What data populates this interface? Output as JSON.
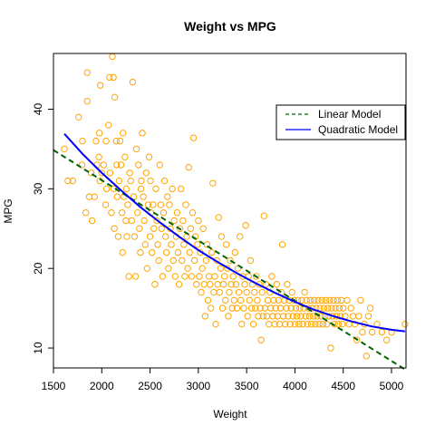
{
  "chart_data": {
    "type": "scatter",
    "title": "Weight vs MPG",
    "xlabel": "Weight",
    "ylabel": "MPG",
    "xlim": [
      1500,
      5150
    ],
    "ylim": [
      7.5,
      47
    ],
    "xticks": [
      1500,
      2000,
      2500,
      3000,
      3500,
      4000,
      4500,
      5000
    ],
    "yticks": [
      10,
      20,
      30,
      40
    ],
    "grid": false,
    "legend_position": "top-right",
    "colors": {
      "points": "#FFA500",
      "linear": "#006400",
      "quadratic": "#0000FF"
    },
    "legend": [
      {
        "label": "Linear Model",
        "color": "#006400",
        "style": "dashed"
      },
      {
        "label": "Quadratic Model",
        "color": "#0000FF",
        "style": "solid"
      }
    ],
    "linear_model": {
      "x": [
        1500,
        5150
      ],
      "y": [
        34.86,
        7.24
      ]
    },
    "quadratic_model": {
      "x": [
        1613,
        1800,
        2000,
        2200,
        2400,
        2600,
        2800,
        3000,
        3200,
        3400,
        3600,
        3800,
        4000,
        4200,
        4400,
        4600,
        4800,
        5000,
        5140
      ],
      "y": [
        36.9,
        34.4,
        32.0,
        29.8,
        27.7,
        25.8,
        24.0,
        22.3,
        20.8,
        19.4,
        18.1,
        16.9,
        15.8,
        14.8,
        14.0,
        13.3,
        12.7,
        12.3,
        12.1
      ]
    },
    "points": [
      [
        1613,
        35
      ],
      [
        1649,
        31
      ],
      [
        1700,
        31
      ],
      [
        1760,
        39
      ],
      [
        1795,
        33
      ],
      [
        1800,
        36
      ],
      [
        1835,
        27
      ],
      [
        1850,
        44.6
      ],
      [
        1850,
        41
      ],
      [
        1870,
        29
      ],
      [
        1890,
        32
      ],
      [
        1900,
        26
      ],
      [
        1925,
        29
      ],
      [
        1940,
        36
      ],
      [
        1950,
        33
      ],
      [
        1970,
        34
      ],
      [
        1975,
        37
      ],
      [
        1980,
        31
      ],
      [
        1985,
        43
      ],
      [
        2000,
        32
      ],
      [
        2020,
        33
      ],
      [
        2040,
        28
      ],
      [
        2045,
        36
      ],
      [
        2050,
        30
      ],
      [
        2070,
        38
      ],
      [
        2080,
        44
      ],
      [
        2085,
        32
      ],
      [
        2100,
        27
      ],
      [
        2110,
        46.6
      ],
      [
        2120,
        44
      ],
      [
        2125,
        30
      ],
      [
        2130,
        25
      ],
      [
        2135,
        41.5
      ],
      [
        2150,
        36
      ],
      [
        2155,
        33
      ],
      [
        2160,
        29
      ],
      [
        2170,
        24
      ],
      [
        2180,
        31
      ],
      [
        2190,
        36
      ],
      [
        2200,
        33
      ],
      [
        2210,
        27
      ],
      [
        2215,
        22
      ],
      [
        2220,
        37
      ],
      [
        2230,
        29
      ],
      [
        2240,
        34
      ],
      [
        2250,
        26
      ],
      [
        2255,
        30
      ],
      [
        2260,
        24
      ],
      [
        2270,
        28
      ],
      [
        2280,
        19
      ],
      [
        2290,
        32
      ],
      [
        2300,
        31
      ],
      [
        2310,
        26
      ],
      [
        2320,
        43.4
      ],
      [
        2330,
        29
      ],
      [
        2340,
        24
      ],
      [
        2350,
        19
      ],
      [
        2360,
        35
      ],
      [
        2370,
        27
      ],
      [
        2380,
        33
      ],
      [
        2390,
        25
      ],
      [
        2400,
        22
      ],
      [
        2405,
        30
      ],
      [
        2410,
        31
      ],
      [
        2420,
        37
      ],
      [
        2430,
        29
      ],
      [
        2440,
        26
      ],
      [
        2450,
        23
      ],
      [
        2460,
        32
      ],
      [
        2470,
        20
      ],
      [
        2480,
        28
      ],
      [
        2490,
        34
      ],
      [
        2500,
        24
      ],
      [
        2505,
        31
      ],
      [
        2510,
        27
      ],
      [
        2520,
        22
      ],
      [
        2530,
        28
      ],
      [
        2540,
        25
      ],
      [
        2550,
        18
      ],
      [
        2560,
        30
      ],
      [
        2570,
        26
      ],
      [
        2580,
        23
      ],
      [
        2590,
        21
      ],
      [
        2600,
        33
      ],
      [
        2610,
        28
      ],
      [
        2620,
        25
      ],
      [
        2630,
        19
      ],
      [
        2640,
        27
      ],
      [
        2650,
        31
      ],
      [
        2660,
        24
      ],
      [
        2670,
        22
      ],
      [
        2680,
        29
      ],
      [
        2690,
        20
      ],
      [
        2700,
        28
      ],
      [
        2710,
        25
      ],
      [
        2720,
        23
      ],
      [
        2730,
        30
      ],
      [
        2740,
        21
      ],
      [
        2750,
        26
      ],
      [
        2760,
        19
      ],
      [
        2770,
        24
      ],
      [
        2780,
        27
      ],
      [
        2790,
        22
      ],
      [
        2800,
        18
      ],
      [
        2810,
        25
      ],
      [
        2820,
        30
      ],
      [
        2830,
        21
      ],
      [
        2840,
        26
      ],
      [
        2850,
        23
      ],
      [
        2860,
        19
      ],
      [
        2870,
        28
      ],
      [
        2880,
        24
      ],
      [
        2890,
        20
      ],
      [
        2900,
        32.7
      ],
      [
        2910,
        22
      ],
      [
        2920,
        25
      ],
      [
        2930,
        19
      ],
      [
        2940,
        27
      ],
      [
        2950,
        36.4
      ],
      [
        2960,
        21
      ],
      [
        2970,
        24
      ],
      [
        2980,
        18
      ],
      [
        2990,
        23
      ],
      [
        3000,
        26
      ],
      [
        3010,
        19
      ],
      [
        3020,
        22
      ],
      [
        3030,
        17
      ],
      [
        3040,
        20
      ],
      [
        3050,
        25
      ],
      [
        3060,
        18
      ],
      [
        3070,
        14
      ],
      [
        3080,
        21
      ],
      [
        3090,
        23
      ],
      [
        3100,
        16
      ],
      [
        3110,
        19
      ],
      [
        3120,
        18
      ],
      [
        3130,
        15
      ],
      [
        3140,
        22
      ],
      [
        3150,
        30.7
      ],
      [
        3160,
        17
      ],
      [
        3170,
        19
      ],
      [
        3180,
        13
      ],
      [
        3190,
        21
      ],
      [
        3200,
        18
      ],
      [
        3210,
        26.4
      ],
      [
        3220,
        17
      ],
      [
        3230,
        20
      ],
      [
        3240,
        24
      ],
      [
        3250,
        15
      ],
      [
        3260,
        18
      ],
      [
        3270,
        19
      ],
      [
        3280,
        16
      ],
      [
        3290,
        23
      ],
      [
        3300,
        20
      ],
      [
        3310,
        14
      ],
      [
        3320,
        17
      ],
      [
        3330,
        21
      ],
      [
        3340,
        18
      ],
      [
        3350,
        15
      ],
      [
        3360,
        19
      ],
      [
        3370,
        16
      ],
      [
        3380,
        22
      ],
      [
        3390,
        18
      ],
      [
        3400,
        15
      ],
      [
        3410,
        20
      ],
      [
        3420,
        17
      ],
      [
        3430,
        24
      ],
      [
        3440,
        16
      ],
      [
        3450,
        13
      ],
      [
        3460,
        19
      ],
      [
        3470,
        15
      ],
      [
        3480,
        18
      ],
      [
        3490,
        25.4
      ],
      [
        3500,
        17
      ],
      [
        3510,
        14
      ],
      [
        3520,
        19
      ],
      [
        3530,
        16
      ],
      [
        3540,
        21
      ],
      [
        3550,
        15
      ],
      [
        3560,
        18
      ],
      [
        3570,
        13
      ],
      [
        3580,
        17
      ],
      [
        3590,
        15
      ],
      [
        3600,
        19
      ],
      [
        3610,
        16
      ],
      [
        3620,
        14
      ],
      [
        3630,
        18
      ],
      [
        3640,
        15
      ],
      [
        3650,
        11
      ],
      [
        3660,
        17
      ],
      [
        3670,
        14
      ],
      [
        3680,
        26.6
      ],
      [
        3690,
        15
      ],
      [
        3700,
        18
      ],
      [
        3710,
        14
      ],
      [
        3720,
        16
      ],
      [
        3730,
        13
      ],
      [
        3740,
        17
      ],
      [
        3750,
        15
      ],
      [
        3760,
        19
      ],
      [
        3770,
        14
      ],
      [
        3780,
        16
      ],
      [
        3790,
        13
      ],
      [
        3800,
        15
      ],
      [
        3810,
        18
      ],
      [
        3820,
        14
      ],
      [
        3830,
        16
      ],
      [
        3840,
        13
      ],
      [
        3850,
        15
      ],
      [
        3860,
        17
      ],
      [
        3870,
        23
      ],
      [
        3880,
        14
      ],
      [
        3890,
        16
      ],
      [
        3900,
        13
      ],
      [
        3910,
        15
      ],
      [
        3920,
        18
      ],
      [
        3930,
        14
      ],
      [
        3940,
        16
      ],
      [
        3950,
        13
      ],
      [
        3960,
        15
      ],
      [
        3970,
        17
      ],
      [
        3980,
        14
      ],
      [
        3990,
        16
      ],
      [
        4000,
        13
      ],
      [
        4010,
        15
      ],
      [
        4020,
        14
      ],
      [
        4030,
        16
      ],
      [
        4040,
        13
      ],
      [
        4050,
        15
      ],
      [
        4060,
        14
      ],
      [
        4070,
        16
      ],
      [
        4080,
        13
      ],
      [
        4090,
        15
      ],
      [
        4100,
        17
      ],
      [
        4110,
        14
      ],
      [
        4120,
        16
      ],
      [
        4130,
        13
      ],
      [
        4140,
        15
      ],
      [
        4150,
        14
      ],
      [
        4160,
        16
      ],
      [
        4170,
        13
      ],
      [
        4180,
        15
      ],
      [
        4190,
        14
      ],
      [
        4200,
        16
      ],
      [
        4210,
        13
      ],
      [
        4220,
        15
      ],
      [
        4230,
        14
      ],
      [
        4240,
        16
      ],
      [
        4250,
        13
      ],
      [
        4260,
        15
      ],
      [
        4270,
        14
      ],
      [
        4280,
        16
      ],
      [
        4290,
        13
      ],
      [
        4300,
        15
      ],
      [
        4310,
        14
      ],
      [
        4320,
        16
      ],
      [
        4330,
        13
      ],
      [
        4340,
        15
      ],
      [
        4350,
        14
      ],
      [
        4360,
        16
      ],
      [
        4370,
        10
      ],
      [
        4380,
        15
      ],
      [
        4390,
        14
      ],
      [
        4400,
        16
      ],
      [
        4410,
        13
      ],
      [
        4420,
        15
      ],
      [
        4430,
        14
      ],
      [
        4440,
        16
      ],
      [
        4450,
        13
      ],
      [
        4460,
        15
      ],
      [
        4470,
        14
      ],
      [
        4480,
        16
      ],
      [
        4490,
        13
      ],
      [
        4500,
        15
      ],
      [
        4520,
        14
      ],
      [
        4540,
        16
      ],
      [
        4560,
        13
      ],
      [
        4580,
        15
      ],
      [
        4600,
        14
      ],
      [
        4620,
        13
      ],
      [
        4640,
        11
      ],
      [
        4660,
        14
      ],
      [
        4680,
        16
      ],
      [
        4700,
        12
      ],
      [
        4720,
        13
      ],
      [
        4740,
        9
      ],
      [
        4760,
        14
      ],
      [
        4780,
        15
      ],
      [
        4800,
        12
      ],
      [
        4850,
        13
      ],
      [
        4900,
        12
      ],
      [
        4950,
        11
      ],
      [
        5000,
        12
      ],
      [
        5140,
        13
      ]
    ]
  }
}
